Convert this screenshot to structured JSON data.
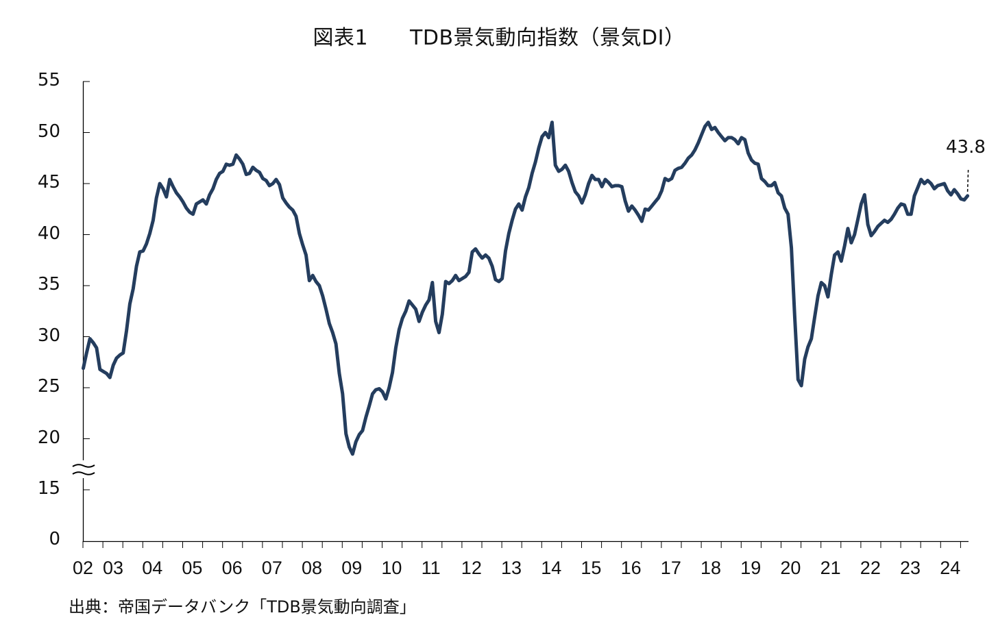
{
  "chart_data": {
    "type": "line",
    "title": "図表1　　TDB景気動向指数（景気DI）",
    "xlabel": "",
    "ylabel": "",
    "source": "出典：帝国データバンク「TDB景気動向調査」",
    "ylim": [
      0,
      55
    ],
    "y_axis_break": {
      "between": [
        0,
        15
      ],
      "note": "axis break between 15 and 20"
    },
    "y_ticks": [
      55,
      50,
      45,
      40,
      35,
      30,
      25,
      20,
      15,
      0
    ],
    "x_tick_labels": [
      "02",
      "03",
      "04",
      "05",
      "06",
      "07",
      "08",
      "09",
      "10",
      "11",
      "12",
      "13",
      "14",
      "15",
      "16",
      "17",
      "18",
      "19",
      "20",
      "21",
      "22",
      "23",
      "24"
    ],
    "grid": false,
    "legend": null,
    "line_color": "#243d5e",
    "annotation": {
      "label": "43.8",
      "series_last_value": 43.8
    },
    "series": [
      {
        "name": "景気DI",
        "start": "2002-07",
        "frequency": "monthly",
        "values": [
          26.9,
          28.4,
          29.8,
          29.4,
          28.9,
          26.8,
          26.6,
          26.4,
          26.0,
          27.2,
          27.9,
          28.2,
          28.4,
          30.6,
          33.2,
          34.7,
          36.9,
          38.3,
          38.4,
          39.1,
          40.1,
          41.4,
          43.6,
          45.0,
          44.5,
          43.7,
          45.4,
          44.7,
          44.1,
          43.7,
          43.2,
          42.6,
          42.2,
          42.0,
          43.0,
          43.2,
          43.4,
          43.0,
          43.9,
          44.5,
          45.4,
          46.0,
          46.2,
          46.9,
          46.8,
          46.9,
          47.8,
          47.4,
          46.9,
          45.9,
          46.0,
          46.6,
          46.3,
          46.1,
          45.5,
          45.3,
          44.8,
          45.0,
          45.4,
          44.9,
          43.6,
          43.1,
          42.7,
          42.4,
          41.8,
          40.1,
          39.0,
          38.0,
          35.5,
          36.0,
          35.4,
          35.0,
          34.0,
          32.7,
          31.3,
          30.4,
          29.3,
          26.4,
          24.4,
          20.5,
          19.2,
          18.5,
          19.7,
          20.4,
          20.8,
          22.1,
          23.2,
          24.4,
          24.8,
          24.9,
          24.6,
          23.9,
          25.0,
          26.5,
          28.9,
          30.7,
          31.8,
          32.5,
          33.5,
          33.1,
          32.7,
          31.5,
          32.4,
          33.1,
          33.6,
          35.3,
          31.5,
          30.4,
          32.2,
          35.4,
          35.2,
          35.5,
          36.0,
          35.5,
          35.7,
          35.9,
          36.3,
          38.3,
          38.6,
          38.1,
          37.7,
          38.0,
          37.7,
          36.9,
          35.6,
          35.4,
          35.7,
          38.4,
          40.1,
          41.4,
          42.5,
          43.0,
          42.4,
          43.7,
          44.6,
          46.0,
          47.1,
          48.5,
          49.6,
          50.0,
          49.5,
          51.0,
          46.8,
          46.2,
          46.4,
          46.8,
          46.2,
          45.1,
          44.2,
          43.8,
          43.1,
          43.9,
          45.0,
          45.8,
          45.4,
          45.4,
          44.7,
          45.4,
          45.1,
          44.7,
          44.8,
          44.8,
          44.7,
          43.3,
          42.3,
          42.8,
          42.4,
          41.9,
          41.3,
          42.5,
          42.4,
          42.8,
          43.2,
          43.6,
          44.3,
          45.5,
          45.3,
          45.5,
          46.3,
          46.5,
          46.6,
          47.0,
          47.5,
          47.8,
          48.3,
          49.0,
          49.8,
          50.6,
          51.0,
          50.3,
          50.5,
          50.0,
          49.6,
          49.2,
          49.5,
          49.5,
          49.3,
          48.9,
          49.5,
          49.3,
          48.0,
          47.3,
          47.0,
          46.9,
          45.5,
          45.2,
          44.8,
          44.8,
          45.1,
          44.1,
          43.8,
          42.6,
          42.0,
          38.7,
          32.0,
          25.8,
          25.2,
          27.8,
          29.0,
          29.8,
          31.9,
          34.0,
          35.3,
          35.0,
          33.9,
          36.1,
          38.0,
          38.3,
          37.4,
          38.9,
          40.6,
          39.2,
          40.0,
          41.5,
          43.0,
          43.9,
          41.0,
          39.9,
          40.3,
          40.8,
          41.1,
          41.4,
          41.2,
          41.5,
          42.0,
          42.6,
          43.0,
          42.9,
          42.0,
          42.0,
          43.8,
          44.6,
          45.4,
          45.0,
          45.3,
          45.0,
          44.5,
          44.8,
          44.9,
          45.0,
          44.3,
          43.9,
          44.4,
          44.0,
          43.5,
          43.4,
          43.8
        ]
      }
    ]
  }
}
